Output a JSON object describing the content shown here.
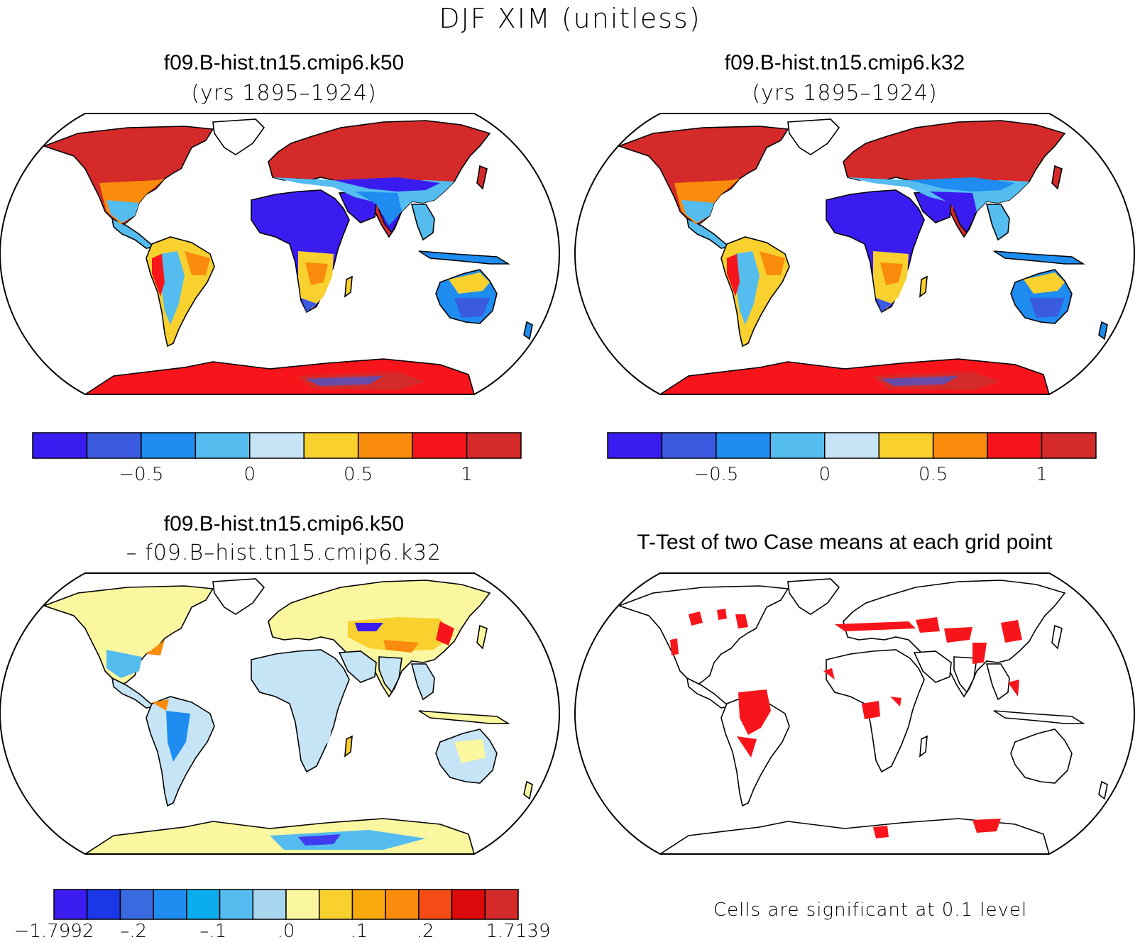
{
  "figure": {
    "title": "DJF XIM (unitless)"
  },
  "panels": {
    "top_left": {
      "title": "f09.B-hist.tn15.cmip6.k50",
      "subtitle": "(yrs 1895–1924)"
    },
    "top_right": {
      "title": "f09.B-hist.tn15.cmip6.k32",
      "subtitle": "(yrs 1895–1924)"
    },
    "bottom_left": {
      "title": "f09.B-hist.tn15.cmip6.k50",
      "subtitle": "– f09.B–hist.tn15.cmip6.k32"
    },
    "bottom_right": {
      "title": "T-Test of two Case means at each grid point",
      "footnote": "Cells are significant at 0.1 level"
    }
  },
  "colorbars": {
    "abs": {
      "colors": [
        "#3b1cf0",
        "#3a5be0",
        "#1e8cf0",
        "#55bcef",
        "#c5e5f6",
        "#f9d12f",
        "#f98c0c",
        "#f7151b",
        "#d42a2a"
      ],
      "labels": [
        "−0.5",
        "0",
        "0.5",
        "1"
      ]
    },
    "diff": {
      "colors": [
        "#3b1cf0",
        "#1a37e8",
        "#3a6ae0",
        "#1e8cf0",
        "#0aacee",
        "#55bcef",
        "#a8d6ef",
        "#fbf7a0",
        "#f9d12f",
        "#f8aa0c",
        "#f98c0c",
        "#f44c14",
        "#dc0a0a",
        "#d42a2a"
      ],
      "labels": [
        "−1.7992",
        "–.2",
        "–.1",
        ".0",
        ".1",
        ".2",
        "1.7139"
      ]
    }
  },
  "map_colors": {
    "land_outline": "#000000",
    "significant": "#f7151b"
  }
}
